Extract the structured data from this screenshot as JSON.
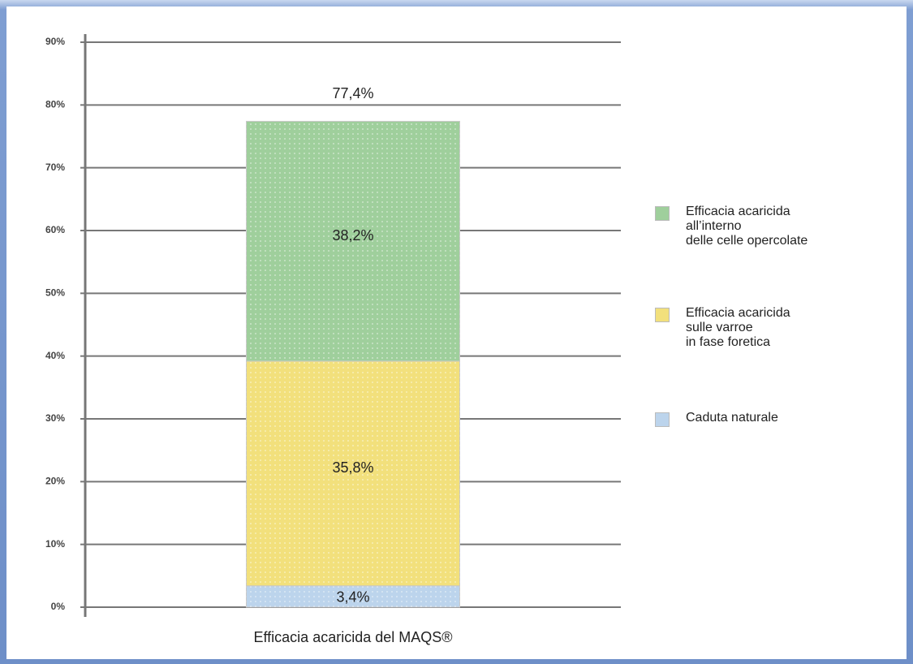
{
  "chart_data": {
    "type": "stacked_bar",
    "categories": [
      "Efficacia acaricida del MAQS®"
    ],
    "series": [
      {
        "name": "Caduta naturale",
        "color": "#bcd4ec",
        "values": [
          3.4
        ],
        "value_labels": [
          "3,4%"
        ]
      },
      {
        "name": "Efficacia acaricida\nsulle varroe\nin fase foretica",
        "color": "#f2e07c",
        "values": [
          35.8
        ],
        "value_labels": [
          "35,8%"
        ]
      },
      {
        "name": "Efficacia acaricida\nall’interno\ndelle celle opercolate",
        "color": "#9fcf9c",
        "values": [
          38.2
        ],
        "value_labels": [
          "38,2%"
        ]
      }
    ],
    "totals": [
      77.4
    ],
    "total_labels": [
      "77,4%"
    ],
    "ylim": [
      0,
      90
    ],
    "yticks": [
      {
        "value": 0,
        "label": "0%"
      },
      {
        "value": 10,
        "label": "10%"
      },
      {
        "value": 20,
        "label": "20%"
      },
      {
        "value": 30,
        "label": "30%"
      },
      {
        "value": 40,
        "label": "40%"
      },
      {
        "value": 50,
        "label": "50%"
      },
      {
        "value": 60,
        "label": "60%"
      },
      {
        "value": 70,
        "label": "70%"
      },
      {
        "value": 80,
        "label": "80%"
      },
      {
        "value": 90,
        "label": "90%"
      }
    ],
    "grid": true
  }
}
